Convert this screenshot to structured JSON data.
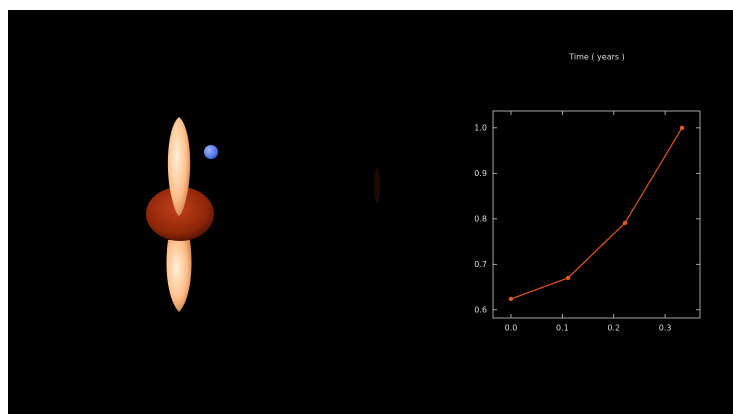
{
  "chart_data": {
    "type": "line",
    "title": "Time ( years )",
    "x": [
      0,
      0.111,
      0.222,
      0.333
    ],
    "series": [
      {
        "color": "#e2581c",
        "values": [
          0.624,
          0.67,
          0.791,
          1.0
        ]
      }
    ],
    "xlim": [
      -0.035,
      0.368
    ],
    "xticks": [
      {
        "value": 0,
        "label": "0.0"
      },
      0.1,
      0.2,
      0.3
    ],
    "ylim": [
      0.582,
      1.037
    ],
    "yticks": [
      0.6,
      0.7,
      0.8,
      0.9,
      {
        "value": 1,
        "label": "1.0"
      }
    ]
  }
}
